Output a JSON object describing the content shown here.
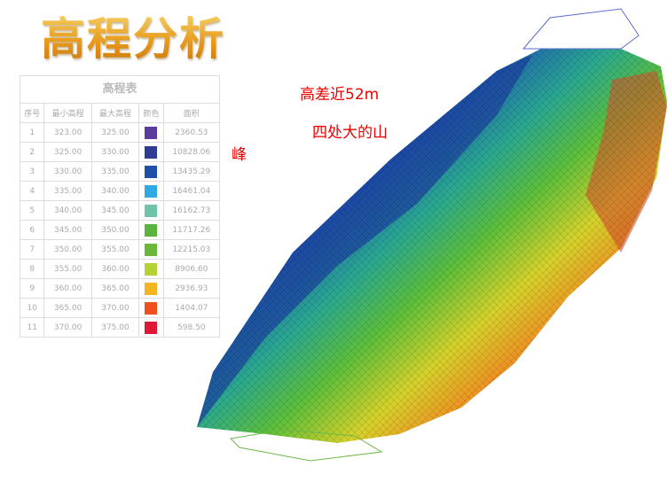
{
  "title": "高程分析",
  "table": {
    "caption": "高程表",
    "headers": [
      "序号",
      "最小高程",
      "最大高程",
      "颜色",
      "面积"
    ],
    "rows": [
      {
        "index": "1",
        "min": "323.00",
        "max": "325.00",
        "color": "#5a3c9e",
        "area": "2360.53"
      },
      {
        "index": "2",
        "min": "325.00",
        "max": "330.00",
        "color": "#2e3d94",
        "area": "10828.06"
      },
      {
        "index": "3",
        "min": "330.00",
        "max": "335.00",
        "color": "#1f4fa8",
        "area": "13435.29"
      },
      {
        "index": "4",
        "min": "335.00",
        "max": "340.00",
        "color": "#2fa9e0",
        "area": "16461.04"
      },
      {
        "index": "5",
        "min": "340.00",
        "max": "345.00",
        "color": "#6fc3a8",
        "area": "16162.73"
      },
      {
        "index": "6",
        "min": "345.00",
        "max": "350.00",
        "color": "#59b33c",
        "area": "11717.26"
      },
      {
        "index": "7",
        "min": "350.00",
        "max": "355.00",
        "color": "#6ab83a",
        "area": "12215.03"
      },
      {
        "index": "8",
        "min": "355.00",
        "max": "360.00",
        "color": "#b4d234",
        "area": "8906.60"
      },
      {
        "index": "9",
        "min": "360.00",
        "max": "365.00",
        "color": "#f2b520",
        "area": "2936.93"
      },
      {
        "index": "10",
        "min": "365.00",
        "max": "370.00",
        "color": "#f05020",
        "area": "1404.07"
      },
      {
        "index": "11",
        "min": "370.00",
        "max": "375.00",
        "color": "#e01838",
        "area": "598.50"
      }
    ]
  },
  "annotations": {
    "peak": "峰",
    "height_diff": "高差近52m",
    "mountains": "四处大的山"
  }
}
